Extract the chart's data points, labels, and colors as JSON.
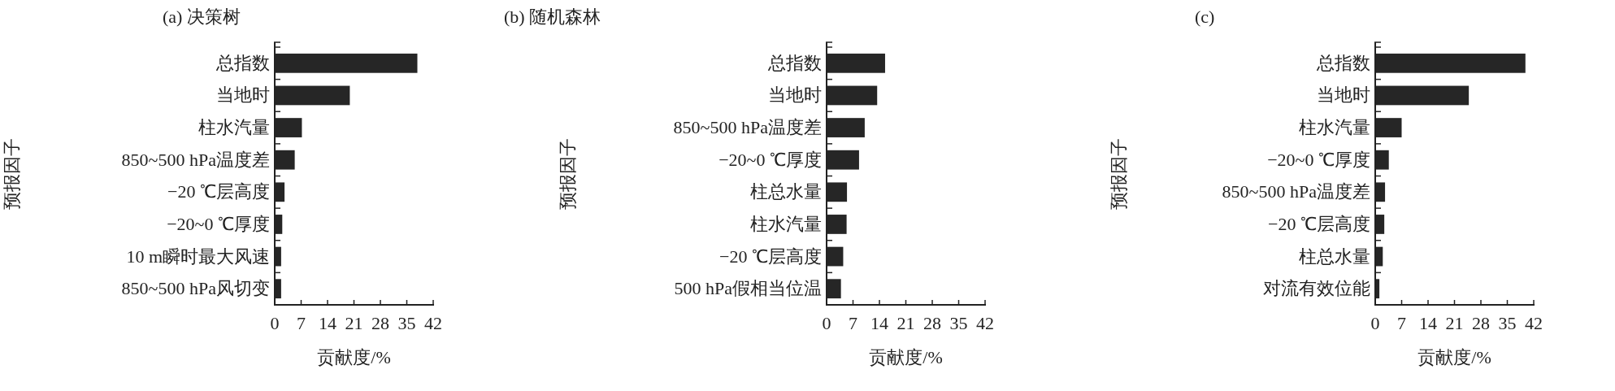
{
  "chart_data": [
    {
      "type": "bar",
      "orientation": "horizontal",
      "title": "(a) 决策树",
      "xlabel": "贡献度/%",
      "ylabel": "预报因子",
      "color": "#262626",
      "xlim": [
        0,
        42
      ],
      "xticks": [
        0,
        7,
        14,
        21,
        28,
        35,
        42
      ],
      "categories": [
        "总指数",
        "当地时",
        "柱水汽量",
        "850~500 hPa温度差",
        "−20 ℃层高度",
        "−20~0 ℃厚度",
        "10 m瞬时最大风速",
        "850~500 hPa风切变"
      ],
      "values": [
        37.8,
        19.9,
        7.2,
        5.3,
        2.6,
        2.0,
        1.7,
        1.7
      ]
    },
    {
      "type": "bar",
      "orientation": "horizontal",
      "title": "(b) 随机森林",
      "xlabel": "贡献度/%",
      "ylabel": "预报因子",
      "color": "#262626",
      "xlim": [
        0,
        42
      ],
      "xticks": [
        0,
        7,
        14,
        21,
        28,
        35,
        42
      ],
      "categories": [
        "总指数",
        "当地时",
        "850~500 hPa温度差",
        "−20~0 ℃厚度",
        "柱总水量",
        "柱水汽量",
        "−20 ℃层高度",
        "500 hPa假相当位温"
      ],
      "values": [
        15.5,
        13.4,
        10.1,
        8.6,
        5.4,
        5.3,
        4.4,
        3.8
      ]
    },
    {
      "type": "bar",
      "orientation": "horizontal",
      "title": "(c)",
      "xlabel": "贡献度/%",
      "ylabel": "预报因子",
      "color": "#262626",
      "xlim": [
        0,
        42
      ],
      "xticks": [
        0,
        7,
        14,
        21,
        28,
        35,
        42
      ],
      "categories": [
        "总指数",
        "当地时",
        "柱水汽量",
        "−20~0 ℃厚度",
        "850~500 hPa温度差",
        "−20 ℃层高度",
        "柱总水量",
        "对流有效位能"
      ],
      "values": [
        39.8,
        24.8,
        7.0,
        3.6,
        2.6,
        2.4,
        2.0,
        1.1
      ]
    }
  ]
}
